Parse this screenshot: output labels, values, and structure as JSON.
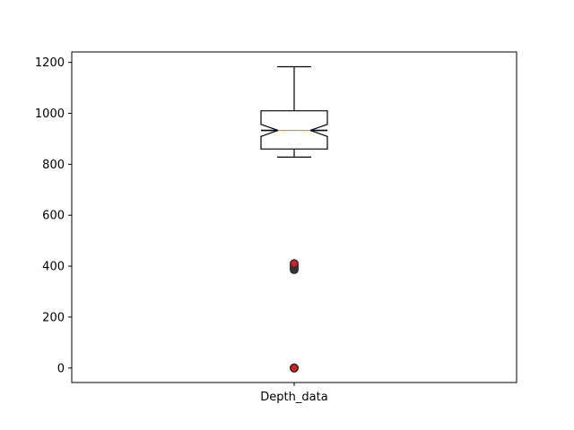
{
  "chart_data": {
    "type": "boxplot",
    "title": "",
    "xlabel": "",
    "ylabel": "",
    "categories": [
      "Depth_data"
    ],
    "ylim": [
      -57,
      1241
    ],
    "yticks": [
      0,
      200,
      400,
      600,
      800,
      1000,
      1200
    ],
    "grid": false,
    "boxes": [
      {
        "name": "Depth_data",
        "whisker_low": 828,
        "q1": 860,
        "median": 933,
        "q3": 1010,
        "whisker_high": 1183,
        "notched": true,
        "outliers": [
          0,
          0,
          0,
          386,
          390,
          396,
          400,
          405,
          410
        ]
      }
    ],
    "colors": {
      "box": "#000000",
      "median": "#ff7f0e",
      "outlier_face": "#e41a1c",
      "outlier_edge": "#333333",
      "frame": "#000000"
    }
  }
}
